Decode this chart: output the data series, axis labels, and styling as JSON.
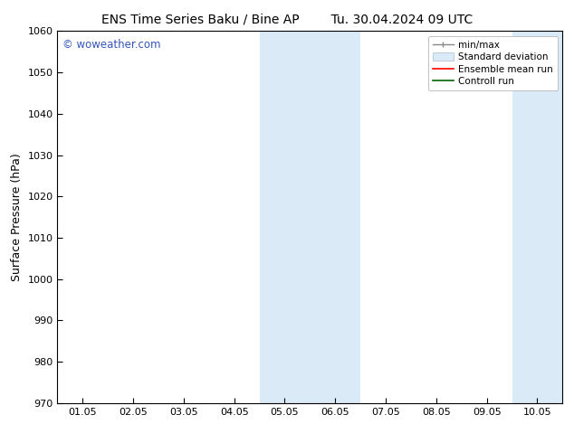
{
  "title_left": "ENS Time Series Baku / Bine AP",
  "title_right": "Tu. 30.04.2024 09 UTC",
  "ylabel": "Surface Pressure (hPa)",
  "ylim": [
    970,
    1060
  ],
  "yticks": [
    970,
    980,
    990,
    1000,
    1010,
    1020,
    1030,
    1040,
    1050,
    1060
  ],
  "xlim_start": -0.5,
  "xlim_end": 9.5,
  "xtick_labels": [
    "01.05",
    "02.05",
    "03.05",
    "04.05",
    "05.05",
    "06.05",
    "07.05",
    "08.05",
    "09.05",
    "10.05"
  ],
  "xtick_positions": [
    0,
    1,
    2,
    3,
    4,
    5,
    6,
    7,
    8,
    9
  ],
  "shaded_bands": [
    {
      "x_start": 3.5,
      "x_end": 5.5
    },
    {
      "x_start": 8.5,
      "x_end": 9.5
    }
  ],
  "shaded_color": "#daeaf6",
  "watermark_text": "© woweather.com",
  "watermark_color": "#3355bb",
  "bg_color": "#ffffff",
  "spine_color": "#000000",
  "title_fontsize": 10,
  "tick_fontsize": 8,
  "ylabel_fontsize": 9,
  "legend_fontsize": 7.5
}
